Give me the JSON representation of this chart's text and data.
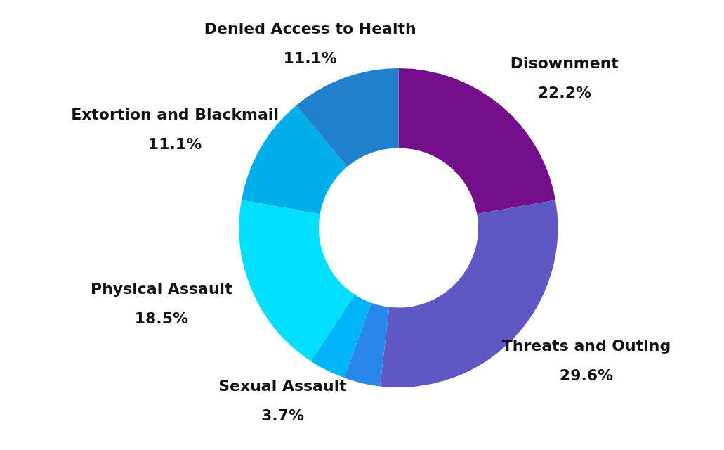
{
  "chart_data": {
    "type": "donut",
    "categories": [
      "Disownment",
      "Threats and Outing",
      null,
      "Sexual Assault",
      "Physical Assault",
      "Extortion and Blackmail",
      "Denied Access to Health"
    ],
    "values": [
      22.2,
      29.6,
      3.7,
      3.7,
      18.5,
      11.1,
      11.1
    ],
    "value_labels": [
      "22.2%",
      "29.6%",
      null,
      "3.7%",
      "18.5%",
      "11.1%",
      "11.1%"
    ],
    "colors": [
      "#740e8a",
      "#5f57c2",
      "#2887e8",
      "#00b4f8",
      "#00e0fc",
      "#00aeea",
      "#2080cc"
    ]
  }
}
